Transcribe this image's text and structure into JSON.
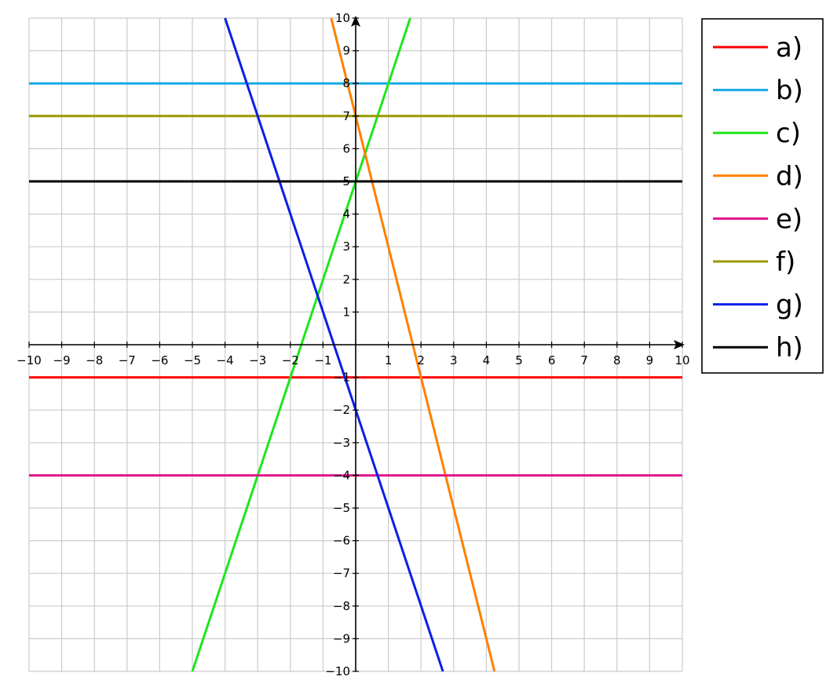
{
  "chart_data": {
    "type": "line",
    "title": "",
    "xlabel": "",
    "ylabel": "",
    "xlim": [
      -10,
      10
    ],
    "ylim": [
      -10,
      10
    ],
    "grid": true,
    "legend_position": "right",
    "x_ticks": [
      "−10",
      "−9",
      "−8",
      "−7",
      "−6",
      "−5",
      "−4",
      "−3",
      "−2",
      "−1",
      "1",
      "2",
      "3",
      "4",
      "5",
      "6",
      "7",
      "8",
      "9",
      "10"
    ],
    "y_ticks": [
      "−10",
      "−9",
      "−8",
      "−7",
      "−6",
      "−5",
      "−4",
      "−3",
      "−2",
      "−1",
      "1",
      "2",
      "3",
      "4",
      "5",
      "6",
      "7",
      "8",
      "9",
      "10"
    ],
    "series": [
      {
        "name": "a)",
        "color": "#ff0000",
        "x": [
          -10,
          10
        ],
        "y": [
          -1,
          -1
        ]
      },
      {
        "name": "b)",
        "color": "#14a9e3",
        "x": [
          -10,
          10
        ],
        "y": [
          8,
          8
        ]
      },
      {
        "name": "c)",
        "color": "#1ee61e",
        "x": [
          -5,
          1.67
        ],
        "y": [
          -10,
          10
        ]
      },
      {
        "name": "d)",
        "color": "#ff8000",
        "x": [
          -0.75,
          4.25
        ],
        "y": [
          10,
          -10
        ]
      },
      {
        "name": "e)",
        "color": "#e0148c",
        "x": [
          -10,
          10
        ],
        "y": [
          -4,
          -4
        ]
      },
      {
        "name": "f)",
        "color": "#999900",
        "x": [
          -10,
          10
        ],
        "y": [
          7,
          7
        ]
      },
      {
        "name": "g)",
        "color": "#0a1ee8",
        "x": [
          -4,
          2.67
        ],
        "y": [
          10,
          -10
        ]
      },
      {
        "name": "h)",
        "color": "#000000",
        "x": [
          -10,
          10
        ],
        "y": [
          5,
          5
        ]
      }
    ]
  }
}
